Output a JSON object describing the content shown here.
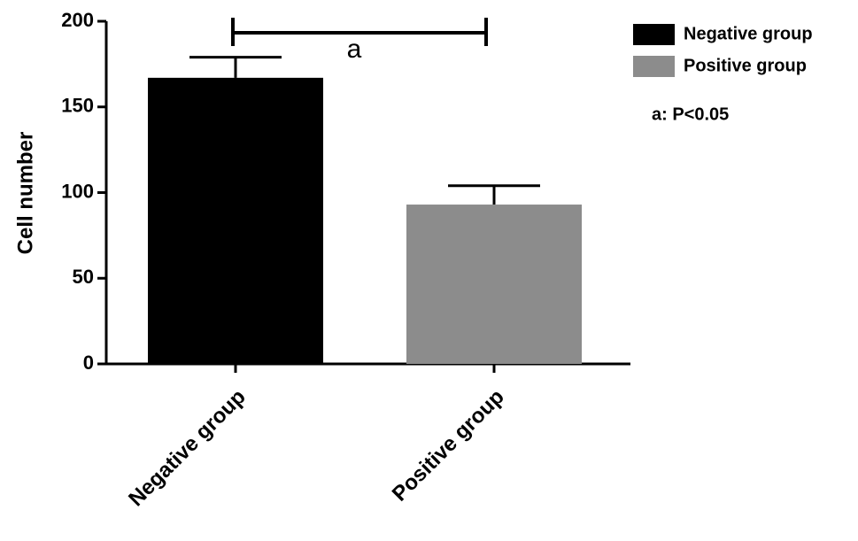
{
  "chart_data": {
    "type": "bar",
    "categories": [
      "Negative group",
      "Positive group"
    ],
    "values": [
      167,
      93
    ],
    "errors": [
      12,
      11
    ],
    "colors": [
      "#000000",
      "#8c8c8c"
    ],
    "ylabel": "Cell number",
    "ylim": [
      0,
      200
    ],
    "yticks": [
      0,
      50,
      100,
      150,
      200
    ],
    "bracket_label": "a",
    "note": "a: P<0.05"
  }
}
